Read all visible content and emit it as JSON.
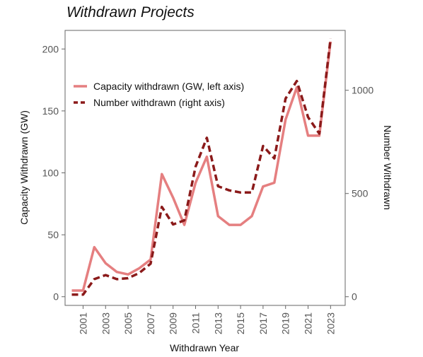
{
  "chart_data": {
    "type": "line",
    "title": "Withdrawn Projects",
    "xlabel": "Withdrawn Year",
    "ylabel_left": "Capacity Withdrawn (GW)",
    "ylabel_right": "Number Withdrawn",
    "x_ticks": [
      "2001",
      "2003",
      "2005",
      "2007",
      "2009",
      "2011",
      "2013",
      "2015",
      "2017",
      "2019",
      "2021",
      "2023"
    ],
    "x": [
      2000,
      2001,
      2002,
      2003,
      2004,
      2005,
      2006,
      2007,
      2008,
      2009,
      2010,
      2011,
      2012,
      2013,
      2014,
      2015,
      2016,
      2017,
      2018,
      2019,
      2020,
      2021,
      2022,
      2023
    ],
    "xlim": [
      1999.4,
      2024.3
    ],
    "ylim_left": [
      -7,
      215
    ],
    "yticks_left": [
      0,
      50,
      100,
      150,
      200
    ],
    "ylim_right": [
      -42,
      1290
    ],
    "yticks_right": [
      0,
      500,
      1000
    ],
    "grid": false,
    "legend_position": "upper-left",
    "series": [
      {
        "name": "Capacity withdrawn (GW, left axis)",
        "axis": "left",
        "style": "solid",
        "color": "#e57f80",
        "values": [
          5,
          5,
          40,
          27,
          20,
          18,
          23,
          30,
          99,
          80,
          58,
          92,
          113,
          65,
          58,
          58,
          65,
          89,
          92,
          143,
          169,
          130,
          130,
          206
        ]
      },
      {
        "name": "Number withdrawn (right axis)",
        "axis": "right",
        "style": "dashed",
        "color": "#8b1a1a",
        "values": [
          10,
          10,
          85,
          105,
          85,
          90,
          115,
          160,
          435,
          350,
          370,
          630,
          770,
          535,
          515,
          505,
          505,
          730,
          670,
          960,
          1045,
          870,
          790,
          1250
        ]
      }
    ]
  }
}
